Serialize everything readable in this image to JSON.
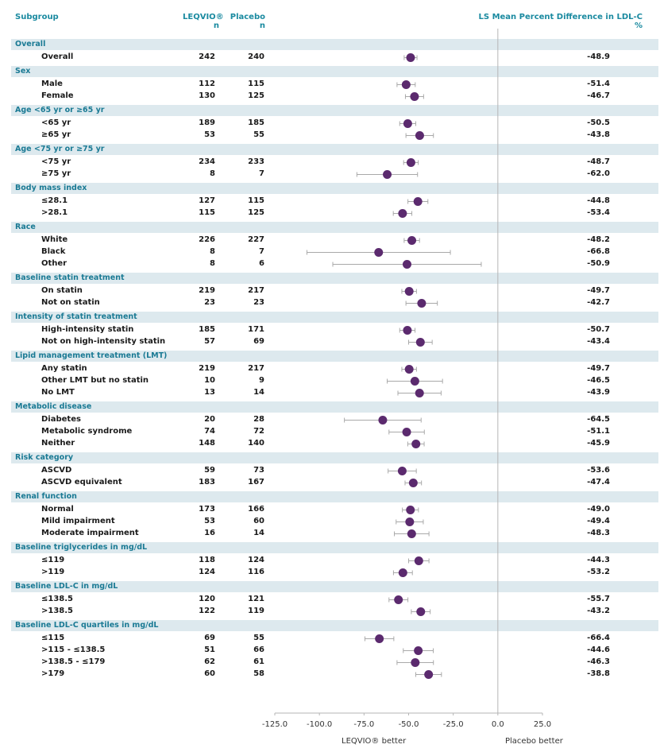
{
  "header": {
    "subgroup": "Subgroup",
    "leqvio": "LEQVIO®",
    "leqvio_n": "n",
    "placebo": "Placebo",
    "placebo_n": "n",
    "lsmean": "LS Mean Percent Difference in LDL-C",
    "lsmean_unit": "%"
  },
  "footer": {
    "left_label": "LEQVIO® better",
    "right_label": "Placebo better"
  },
  "chart_data": {
    "type": "forest",
    "x_ticks": [
      "-125.0",
      "-100.0",
      "-75.0",
      "-50.0",
      "-25.0",
      "0.0",
      "25.0"
    ],
    "x_tick_values": [
      -125,
      -100,
      -75,
      -50,
      -25,
      0,
      25
    ],
    "xlim": [
      -125,
      25
    ],
    "reference_line": 0,
    "colors": {
      "marker": "#5b2a6e",
      "whisker": "#a9a9a9",
      "band": "#dde9ee",
      "group": "#1a7a94",
      "header": "#1a8aa0"
    },
    "groups": [
      {
        "title": "Overall",
        "rows": [
          {
            "label": "Overall",
            "leqvio_n": "242",
            "placebo_n": "240",
            "value": "-48.9",
            "est": -48.9,
            "lo": -52.5,
            "hi": -45.3
          }
        ]
      },
      {
        "title": "Sex",
        "rows": [
          {
            "label": "Male",
            "leqvio_n": "112",
            "placebo_n": "115",
            "value": "-51.4",
            "est": -51.4,
            "lo": -56.5,
            "hi": -46.3
          },
          {
            "label": "Female",
            "leqvio_n": "130",
            "placebo_n": "125",
            "value": "-46.7",
            "est": -46.7,
            "lo": -51.8,
            "hi": -41.6
          }
        ]
      },
      {
        "title": "Age <65 yr or ≥65 yr",
        "rows": [
          {
            "label": "<65 yr",
            "leqvio_n": "189",
            "placebo_n": "185",
            "value": "-50.5",
            "est": -50.5,
            "lo": -55.0,
            "hi": -46.0
          },
          {
            "label": "≥65 yr",
            "leqvio_n": "53",
            "placebo_n": "55",
            "value": "-43.8",
            "est": -43.8,
            "lo": -51.5,
            "hi": -36.1
          }
        ]
      },
      {
        "title": "Age <75 yr or ≥75 yr",
        "rows": [
          {
            "label": "<75 yr",
            "leqvio_n": "234",
            "placebo_n": "233",
            "value": "-48.7",
            "est": -48.7,
            "lo": -52.8,
            "hi": -44.6
          },
          {
            "label": "≥75 yr",
            "leqvio_n": "8",
            "placebo_n": "7",
            "value": "-62.0",
            "est": -62.0,
            "lo": -79.0,
            "hi": -45.0
          }
        ]
      },
      {
        "title": "Body mass index",
        "rows": [
          {
            "label": "≤28.1",
            "leqvio_n": "127",
            "placebo_n": "115",
            "value": "-44.8",
            "est": -44.8,
            "lo": -50.4,
            "hi": -39.2
          },
          {
            "label": ">28.1",
            "leqvio_n": "115",
            "placebo_n": "125",
            "value": "-53.4",
            "est": -53.4,
            "lo": -58.6,
            "hi": -48.2
          }
        ]
      },
      {
        "title": "Race",
        "rows": [
          {
            "label": "White",
            "leqvio_n": "226",
            "placebo_n": "227",
            "value": "-48.2",
            "est": -48.2,
            "lo": -52.5,
            "hi": -43.9
          },
          {
            "label": "Black",
            "leqvio_n": "8",
            "placebo_n": "7",
            "value": "-66.8",
            "est": -66.8,
            "lo": -107.0,
            "hi": -26.6
          },
          {
            "label": "Other",
            "leqvio_n": "8",
            "placebo_n": "6",
            "value": "-50.9",
            "est": -50.9,
            "lo": -92.5,
            "hi": -9.3
          }
        ]
      },
      {
        "title": "Baseline statin treatment",
        "rows": [
          {
            "label": "On statin",
            "leqvio_n": "219",
            "placebo_n": "217",
            "value": "-49.7",
            "est": -49.7,
            "lo": -53.8,
            "hi": -45.6
          },
          {
            "label": "Not on statin",
            "leqvio_n": "23",
            "placebo_n": "23",
            "value": "-42.7",
            "est": -42.7,
            "lo": -51.5,
            "hi": -33.9
          }
        ]
      },
      {
        "title": "Intensity of statin treatment",
        "rows": [
          {
            "label": "High-intensity statin",
            "leqvio_n": "185",
            "placebo_n": "171",
            "value": "-50.7",
            "est": -50.7,
            "lo": -55.0,
            "hi": -46.4
          },
          {
            "label": "Not on high-intensity statin",
            "leqvio_n": "57",
            "placebo_n": "69",
            "value": "-43.4",
            "est": -43.4,
            "lo": -50.0,
            "hi": -36.8
          }
        ]
      },
      {
        "title": "Lipid management treatment (LMT)",
        "rows": [
          {
            "label": "Any statin",
            "leqvio_n": "219",
            "placebo_n": "217",
            "value": "-49.7",
            "est": -49.7,
            "lo": -53.8,
            "hi": -45.6
          },
          {
            "label": "Other LMT but no statin",
            "leqvio_n": "10",
            "placebo_n": "9",
            "value": "-46.5",
            "est": -46.5,
            "lo": -62.0,
            "hi": -31.0
          },
          {
            "label": "No LMT",
            "leqvio_n": "13",
            "placebo_n": "14",
            "value": "-43.9",
            "est": -43.9,
            "lo": -56.0,
            "hi": -31.8
          }
        ]
      },
      {
        "title": "Metabolic disease",
        "rows": [
          {
            "label": "Diabetes",
            "leqvio_n": "20",
            "placebo_n": "28",
            "value": "-64.5",
            "est": -64.5,
            "lo": -86.0,
            "hi": -43.0
          },
          {
            "label": "Metabolic syndrome",
            "leqvio_n": "74",
            "placebo_n": "72",
            "value": "-51.1",
            "est": -51.1,
            "lo": -61.0,
            "hi": -41.2
          },
          {
            "label": "Neither",
            "leqvio_n": "148",
            "placebo_n": "140",
            "value": "-45.9",
            "est": -45.9,
            "lo": -50.5,
            "hi": -41.3
          }
        ]
      },
      {
        "title": "Risk category",
        "rows": [
          {
            "label": "ASCVD",
            "leqvio_n": "59",
            "placebo_n": "73",
            "value": "-53.6",
            "est": -53.6,
            "lo": -61.5,
            "hi": -45.7
          },
          {
            "label": "ASCVD equivalent",
            "leqvio_n": "183",
            "placebo_n": "167",
            "value": "-47.4",
            "est": -47.4,
            "lo": -52.0,
            "hi": -42.8
          }
        ]
      },
      {
        "title": "Renal function",
        "rows": [
          {
            "label": "Normal",
            "leqvio_n": "173",
            "placebo_n": "166",
            "value": "-49.0",
            "est": -49.0,
            "lo": -53.5,
            "hi": -44.5
          },
          {
            "label": "Mild impairment",
            "leqvio_n": "53",
            "placebo_n": "60",
            "value": "-49.4",
            "est": -49.4,
            "lo": -57.0,
            "hi": -41.8
          },
          {
            "label": "Moderate impairment",
            "leqvio_n": "16",
            "placebo_n": "14",
            "value": "-48.3",
            "est": -48.3,
            "lo": -58.0,
            "hi": -38.6
          }
        ]
      },
      {
        "title": "Baseline triglycerides in mg/dL",
        "rows": [
          {
            "label": "≤119",
            "leqvio_n": "118",
            "placebo_n": "124",
            "value": "-44.3",
            "est": -44.3,
            "lo": -50.0,
            "hi": -38.6
          },
          {
            "label": ">119",
            "leqvio_n": "124",
            "placebo_n": "116",
            "value": "-53.2",
            "est": -53.2,
            "lo": -58.5,
            "hi": -47.9
          }
        ]
      },
      {
        "title": "Baseline LDL-C in mg/dL",
        "rows": [
          {
            "label": "≤138.5",
            "leqvio_n": "120",
            "placebo_n": "121",
            "value": "-55.7",
            "est": -55.7,
            "lo": -61.0,
            "hi": -50.4
          },
          {
            "label": ">138.5",
            "leqvio_n": "122",
            "placebo_n": "119",
            "value": "-43.2",
            "est": -43.2,
            "lo": -48.5,
            "hi": -37.9
          }
        ]
      },
      {
        "title": "Baseline LDL-C quartiles in mg/dL",
        "rows": [
          {
            "label": "≤115",
            "leqvio_n": "69",
            "placebo_n": "55",
            "value": "-66.4",
            "est": -66.4,
            "lo": -74.5,
            "hi": -58.3
          },
          {
            "label": ">115 - ≤138.5",
            "leqvio_n": "51",
            "placebo_n": "66",
            "value": "-44.6",
            "est": -44.6,
            "lo": -53.0,
            "hi": -36.2
          },
          {
            "label": ">138.5 - ≤179",
            "leqvio_n": "62",
            "placebo_n": "61",
            "value": "-46.3",
            "est": -46.3,
            "lo": -56.5,
            "hi": -36.1
          },
          {
            "label": ">179",
            "leqvio_n": "60",
            "placebo_n": "58",
            "value": "-38.8",
            "est": -38.8,
            "lo": -46.0,
            "hi": -31.6
          }
        ]
      }
    ]
  }
}
